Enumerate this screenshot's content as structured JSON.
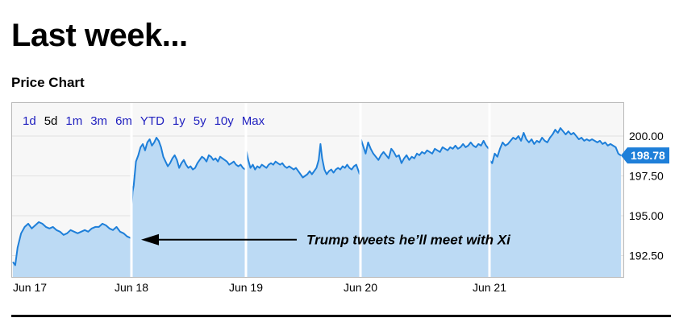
{
  "page": {
    "heading": "Last week...",
    "subheading": "Price Chart"
  },
  "range_selector": {
    "items": [
      "1d",
      "5d",
      "1m",
      "3m",
      "6m",
      "YTD",
      "1y",
      "5y",
      "10y",
      "Max"
    ],
    "selected": "5d"
  },
  "colors": {
    "line": "#1e7fd9",
    "fill": "#bcdaf4",
    "panel_bg": "#f7f7f7",
    "grid": "#e2e2e2",
    "badge": "#1e7fd9",
    "arrow": "#000000"
  },
  "chart_data": {
    "type": "area",
    "title": "",
    "xlabel": "",
    "ylabel": "",
    "x_ticks": [
      "Jun 17",
      "Jun 18",
      "Jun 19",
      "Jun 20",
      "Jun 21"
    ],
    "y_ticks": [
      200.0,
      197.5,
      195.0,
      192.5
    ],
    "y_tick_labels": [
      "200.00",
      "197.50",
      "195.00",
      "192.50"
    ],
    "ylim": [
      191.0,
      202.5
    ],
    "grid": true,
    "last_price": "198.78",
    "sessions": [
      {
        "day": "Jun 17",
        "points": [
          [
            0.0,
            192.1
          ],
          [
            0.02,
            191.9
          ],
          [
            0.04,
            193.0
          ],
          [
            0.07,
            193.9
          ],
          [
            0.1,
            194.3
          ],
          [
            0.13,
            194.5
          ],
          [
            0.16,
            194.2
          ],
          [
            0.19,
            194.4
          ],
          [
            0.22,
            194.6
          ],
          [
            0.25,
            194.5
          ],
          [
            0.28,
            194.3
          ],
          [
            0.31,
            194.2
          ],
          [
            0.34,
            194.3
          ],
          [
            0.37,
            194.1
          ],
          [
            0.4,
            194.0
          ],
          [
            0.43,
            193.8
          ],
          [
            0.46,
            193.9
          ],
          [
            0.49,
            194.1
          ],
          [
            0.52,
            194.0
          ],
          [
            0.55,
            193.9
          ],
          [
            0.58,
            194.0
          ],
          [
            0.61,
            194.1
          ],
          [
            0.64,
            194.0
          ],
          [
            0.67,
            194.2
          ],
          [
            0.7,
            194.3
          ],
          [
            0.73,
            194.3
          ],
          [
            0.76,
            194.5
          ],
          [
            0.79,
            194.4
          ],
          [
            0.82,
            194.2
          ],
          [
            0.85,
            194.1
          ],
          [
            0.88,
            194.3
          ],
          [
            0.91,
            194.0
          ],
          [
            0.94,
            193.9
          ],
          [
            0.97,
            193.7
          ],
          [
            1.0,
            193.6
          ]
        ]
      },
      {
        "day": "Jun 18",
        "points": [
          [
            0.0,
            195.3
          ],
          [
            0.01,
            196.5
          ],
          [
            0.02,
            196.9
          ],
          [
            0.04,
            198.4
          ],
          [
            0.06,
            198.8
          ],
          [
            0.08,
            199.3
          ],
          [
            0.1,
            199.5
          ],
          [
            0.12,
            199.1
          ],
          [
            0.14,
            199.6
          ],
          [
            0.16,
            199.8
          ],
          [
            0.18,
            199.4
          ],
          [
            0.2,
            199.6
          ],
          [
            0.22,
            199.9
          ],
          [
            0.24,
            199.7
          ],
          [
            0.26,
            199.3
          ],
          [
            0.28,
            198.7
          ],
          [
            0.3,
            198.4
          ],
          [
            0.32,
            198.1
          ],
          [
            0.34,
            198.3
          ],
          [
            0.36,
            198.6
          ],
          [
            0.38,
            198.8
          ],
          [
            0.4,
            198.5
          ],
          [
            0.42,
            198.0
          ],
          [
            0.44,
            198.3
          ],
          [
            0.46,
            198.5
          ],
          [
            0.48,
            198.2
          ],
          [
            0.5,
            198.0
          ],
          [
            0.52,
            198.1
          ],
          [
            0.54,
            197.9
          ],
          [
            0.56,
            198.0
          ],
          [
            0.58,
            198.3
          ],
          [
            0.6,
            198.5
          ],
          [
            0.62,
            198.7
          ],
          [
            0.64,
            198.6
          ],
          [
            0.66,
            198.4
          ],
          [
            0.68,
            198.8
          ],
          [
            0.7,
            198.7
          ],
          [
            0.72,
            198.5
          ],
          [
            0.74,
            198.6
          ],
          [
            0.76,
            198.4
          ],
          [
            0.78,
            198.7
          ],
          [
            0.8,
            198.6
          ],
          [
            0.82,
            198.5
          ],
          [
            0.84,
            198.4
          ],
          [
            0.86,
            198.2
          ],
          [
            0.88,
            198.3
          ],
          [
            0.9,
            198.4
          ],
          [
            0.92,
            198.2
          ],
          [
            0.94,
            198.1
          ],
          [
            0.96,
            198.2
          ],
          [
            0.98,
            198.0
          ],
          [
            1.0,
            197.9
          ]
        ]
      },
      {
        "day": "Jun 19",
        "points": [
          [
            0.0,
            199.2
          ],
          [
            0.02,
            198.5
          ],
          [
            0.04,
            198.0
          ],
          [
            0.06,
            198.2
          ],
          [
            0.08,
            197.9
          ],
          [
            0.1,
            198.1
          ],
          [
            0.12,
            198.0
          ],
          [
            0.14,
            198.2
          ],
          [
            0.16,
            198.1
          ],
          [
            0.18,
            198.0
          ],
          [
            0.2,
            198.2
          ],
          [
            0.22,
            198.3
          ],
          [
            0.24,
            198.2
          ],
          [
            0.26,
            198.4
          ],
          [
            0.28,
            198.3
          ],
          [
            0.3,
            198.2
          ],
          [
            0.32,
            198.3
          ],
          [
            0.34,
            198.1
          ],
          [
            0.36,
            198.0
          ],
          [
            0.38,
            198.1
          ],
          [
            0.4,
            198.0
          ],
          [
            0.42,
            197.9
          ],
          [
            0.44,
            198.0
          ],
          [
            0.46,
            197.8
          ],
          [
            0.48,
            197.6
          ],
          [
            0.5,
            197.4
          ],
          [
            0.52,
            197.5
          ],
          [
            0.54,
            197.6
          ],
          [
            0.56,
            197.8
          ],
          [
            0.58,
            197.6
          ],
          [
            0.6,
            197.8
          ],
          [
            0.62,
            198.0
          ],
          [
            0.64,
            198.5
          ],
          [
            0.655,
            199.5
          ],
          [
            0.67,
            198.6
          ],
          [
            0.69,
            197.9
          ],
          [
            0.71,
            197.6
          ],
          [
            0.73,
            197.8
          ],
          [
            0.75,
            197.9
          ],
          [
            0.77,
            197.7
          ],
          [
            0.79,
            197.9
          ],
          [
            0.81,
            198.0
          ],
          [
            0.83,
            197.9
          ],
          [
            0.85,
            198.1
          ],
          [
            0.87,
            198.0
          ],
          [
            0.89,
            198.2
          ],
          [
            0.91,
            198.0
          ],
          [
            0.93,
            197.9
          ],
          [
            0.95,
            198.1
          ],
          [
            0.97,
            198.2
          ],
          [
            1.0,
            197.6
          ]
        ]
      },
      {
        "day": "Jun 20",
        "points": [
          [
            0.0,
            199.9
          ],
          [
            0.02,
            199.4
          ],
          [
            0.04,
            198.9
          ],
          [
            0.06,
            199.6
          ],
          [
            0.08,
            199.2
          ],
          [
            0.1,
            198.9
          ],
          [
            0.12,
            198.7
          ],
          [
            0.14,
            198.5
          ],
          [
            0.16,
            198.8
          ],
          [
            0.18,
            199.0
          ],
          [
            0.2,
            198.8
          ],
          [
            0.22,
            198.6
          ],
          [
            0.24,
            199.2
          ],
          [
            0.26,
            199.0
          ],
          [
            0.28,
            198.7
          ],
          [
            0.3,
            198.8
          ],
          [
            0.32,
            198.3
          ],
          [
            0.34,
            198.6
          ],
          [
            0.36,
            198.8
          ],
          [
            0.38,
            198.5
          ],
          [
            0.4,
            198.7
          ],
          [
            0.42,
            198.6
          ],
          [
            0.44,
            198.9
          ],
          [
            0.46,
            198.8
          ],
          [
            0.48,
            199.0
          ],
          [
            0.5,
            198.9
          ],
          [
            0.52,
            199.1
          ],
          [
            0.54,
            199.0
          ],
          [
            0.56,
            198.9
          ],
          [
            0.58,
            199.2
          ],
          [
            0.6,
            199.1
          ],
          [
            0.62,
            199.0
          ],
          [
            0.64,
            199.3
          ],
          [
            0.66,
            199.2
          ],
          [
            0.68,
            199.1
          ],
          [
            0.7,
            199.3
          ],
          [
            0.72,
            199.2
          ],
          [
            0.74,
            199.4
          ],
          [
            0.76,
            199.2
          ],
          [
            0.78,
            199.3
          ],
          [
            0.8,
            199.5
          ],
          [
            0.82,
            199.3
          ],
          [
            0.84,
            199.4
          ],
          [
            0.86,
            199.6
          ],
          [
            0.88,
            199.4
          ],
          [
            0.9,
            199.3
          ],
          [
            0.92,
            199.5
          ],
          [
            0.94,
            199.4
          ],
          [
            0.96,
            199.7
          ],
          [
            0.98,
            199.4
          ],
          [
            1.0,
            199.2
          ]
        ]
      },
      {
        "day": "Jun 21",
        "points": [
          [
            0.0,
            198.5
          ],
          [
            0.02,
            198.3
          ],
          [
            0.04,
            198.9
          ],
          [
            0.06,
            198.7
          ],
          [
            0.08,
            199.2
          ],
          [
            0.1,
            199.6
          ],
          [
            0.12,
            199.4
          ],
          [
            0.14,
            199.5
          ],
          [
            0.16,
            199.7
          ],
          [
            0.18,
            199.9
          ],
          [
            0.2,
            199.8
          ],
          [
            0.22,
            200.0
          ],
          [
            0.24,
            199.7
          ],
          [
            0.26,
            200.2
          ],
          [
            0.28,
            199.8
          ],
          [
            0.3,
            199.6
          ],
          [
            0.32,
            199.8
          ],
          [
            0.34,
            199.5
          ],
          [
            0.36,
            199.7
          ],
          [
            0.38,
            199.6
          ],
          [
            0.4,
            199.9
          ],
          [
            0.42,
            199.7
          ],
          [
            0.44,
            199.6
          ],
          [
            0.46,
            199.9
          ],
          [
            0.48,
            200.1
          ],
          [
            0.5,
            200.4
          ],
          [
            0.52,
            200.2
          ],
          [
            0.54,
            200.5
          ],
          [
            0.56,
            200.3
          ],
          [
            0.58,
            200.1
          ],
          [
            0.6,
            200.3
          ],
          [
            0.62,
            200.1
          ],
          [
            0.64,
            200.2
          ],
          [
            0.66,
            200.0
          ],
          [
            0.68,
            199.8
          ],
          [
            0.7,
            199.9
          ],
          [
            0.72,
            199.7
          ],
          [
            0.74,
            199.8
          ],
          [
            0.76,
            199.7
          ],
          [
            0.78,
            199.8
          ],
          [
            0.8,
            199.7
          ],
          [
            0.82,
            199.6
          ],
          [
            0.84,
            199.7
          ],
          [
            0.86,
            199.5
          ],
          [
            0.88,
            199.6
          ],
          [
            0.9,
            199.4
          ],
          [
            0.92,
            199.5
          ],
          [
            0.94,
            199.4
          ],
          [
            0.96,
            199.3
          ],
          [
            0.98,
            198.9
          ],
          [
            1.0,
            198.78
          ]
        ]
      }
    ],
    "annotations": [
      {
        "text": "Trump tweets he’ll meet with Xi",
        "points_to": {
          "session": 1,
          "position": 0.0,
          "value": 193.5
        }
      }
    ]
  }
}
